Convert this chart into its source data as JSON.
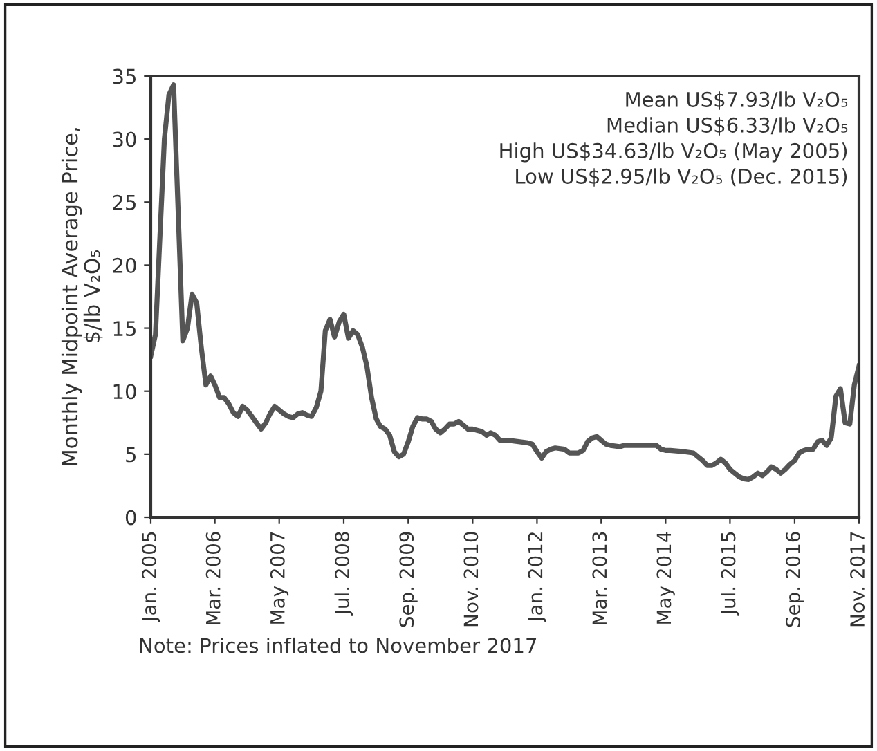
{
  "chart_data": {
    "type": "line",
    "ylabel": "Monthly Midpoint Average Price,\n$/lb V₂O₅",
    "annotations": [
      "Mean US$7.93/lb V₂O₅",
      "Median US$6.33/lb V₂O₅",
      "High US$34.63/lb V₂O₅ (May 2005)",
      "Low US$2.95/lb V₂O₅ (Dec. 2015)",
      "Note: Prices inflated to November 2017"
    ],
    "x": [
      "2005-01",
      "2005-02",
      "2005-04",
      "2005-05",
      "2005-06",
      "2005-08",
      "2005-09",
      "2005-10",
      "2005-11",
      "2005-12",
      "2006-01",
      "2006-02",
      "2006-03",
      "2006-04",
      "2006-05",
      "2006-06",
      "2006-07",
      "2006-08",
      "2006-09",
      "2006-10",
      "2006-11",
      "2006-12",
      "2007-01",
      "2007-02",
      "2007-03",
      "2007-04",
      "2007-05",
      "2007-06",
      "2007-07",
      "2007-08",
      "2007-09",
      "2007-10",
      "2007-11",
      "2007-12",
      "2008-01",
      "2008-02",
      "2008-03",
      "2008-04",
      "2008-05",
      "2008-06",
      "2008-07",
      "2008-08",
      "2008-09",
      "2008-10",
      "2008-11",
      "2008-12",
      "2009-01",
      "2009-02",
      "2009-03",
      "2009-04",
      "2009-05",
      "2009-06",
      "2009-07",
      "2009-08",
      "2009-09",
      "2009-10",
      "2009-11",
      "2009-12",
      "2010-01",
      "2010-02",
      "2010-03",
      "2010-04",
      "2010-05",
      "2010-06",
      "2010-07",
      "2010-08",
      "2010-09",
      "2010-10",
      "2010-11",
      "2010-12",
      "2011-01",
      "2011-02",
      "2011-03",
      "2011-04",
      "2011-05",
      "2011-07",
      "2011-09",
      "2011-11",
      "2011-12",
      "2012-01",
      "2012-02",
      "2012-03",
      "2012-04",
      "2012-05",
      "2012-07",
      "2012-08",
      "2012-10",
      "2012-11",
      "2012-12",
      "2013-01",
      "2013-02",
      "2013-03",
      "2013-04",
      "2013-05",
      "2013-07",
      "2013-08",
      "2013-11",
      "2014-03",
      "2014-04",
      "2014-05",
      "2014-06",
      "2014-09",
      "2014-11",
      "2014-12",
      "2015-01",
      "2015-02",
      "2015-03",
      "2015-04",
      "2015-05",
      "2015-06",
      "2015-07",
      "2015-08",
      "2015-09",
      "2015-10",
      "2015-11",
      "2015-12",
      "2016-01",
      "2016-02",
      "2016-03",
      "2016-04",
      "2016-05",
      "2016-06",
      "2016-07",
      "2016-08",
      "2016-09",
      "2016-10",
      "2016-11",
      "2016-12",
      "2017-01",
      "2017-02",
      "2017-03",
      "2017-04",
      "2017-05",
      "2017-06",
      "2017-07",
      "2017-08",
      "2017-09",
      "2017-10",
      "2017-11"
    ],
    "series": [
      {
        "color": "#555555",
        "values": [
          12.8,
          14.5,
          30,
          33.5,
          34.3,
          14,
          15,
          17.7,
          17,
          13.5,
          10.5,
          11.2,
          10.5,
          9.5,
          9.5,
          9,
          8.3,
          8,
          8.8,
          8.5,
          8,
          7.5,
          7,
          7.5,
          8.2,
          8.8,
          8.5,
          8.2,
          8,
          7.9,
          8.2,
          8.3,
          8.1,
          8,
          8.7,
          10,
          14.8,
          15.7,
          14.3,
          15.5,
          16.1,
          14.2,
          14.8,
          14.5,
          13.5,
          12,
          9.5,
          7.8,
          7.2,
          7,
          6.5,
          5.2,
          4.8,
          5,
          6,
          7.2,
          7.9,
          7.8,
          7.8,
          7.6,
          7,
          6.7,
          7,
          7.4,
          7.4,
          7.6,
          7.3,
          7,
          7,
          6.9,
          6.8,
          6.5,
          6.7,
          6.5,
          6.1,
          6.1,
          6,
          5.9,
          5.8,
          5.2,
          4.7,
          5.2,
          5.4,
          5.5,
          5.4,
          5.1,
          5.1,
          5.3,
          6,
          6.3,
          6.4,
          6.1,
          5.8,
          5.7,
          5.6,
          5.7,
          5.7,
          5.7,
          5.4,
          5.3,
          5.3,
          5.2,
          5.1,
          4.8,
          4.5,
          4.1,
          4.1,
          4.3,
          4.6,
          4.3,
          3.8,
          3.5,
          3.2,
          3.05,
          3.0,
          3.2,
          3.5,
          3.3,
          3.6,
          4,
          3.8,
          3.5,
          3.8,
          4.2,
          4.5,
          5.1,
          5.3,
          5.4,
          5.4,
          6,
          6.1,
          5.7,
          6.3,
          9.6,
          10.2,
          7.5,
          7.4,
          10.5,
          12
        ]
      }
    ],
    "xlim": [
      "2005-01",
      "2017-11"
    ],
    "xticks": [
      {
        "value": "2005-01",
        "label": "Jan. 2005"
      },
      {
        "value": "2006-03",
        "label": "Mar. 2006"
      },
      {
        "value": "2007-05",
        "label": "May 2007"
      },
      {
        "value": "2008-07",
        "label": "Jul. 2008"
      },
      {
        "value": "2009-09",
        "label": "Sep. 2009"
      },
      {
        "value": "2010-11",
        "label": "Nov. 2010"
      },
      {
        "value": "2012-01",
        "label": "Jan. 2012"
      },
      {
        "value": "2013-03",
        "label": "Mar. 2013"
      },
      {
        "value": "2014-05",
        "label": "May 2014"
      },
      {
        "value": "2015-07",
        "label": "Jul. 2015"
      },
      {
        "value": "2016-09",
        "label": "Sep. 2016"
      },
      {
        "value": "2017-11",
        "label": "Nov. 2017"
      }
    ],
    "ylim": [
      0,
      35
    ],
    "yticks": [
      0,
      5,
      10,
      15,
      20,
      25,
      30,
      35
    ],
    "grid": false,
    "legend": false,
    "marker": "none",
    "line_style": "solid"
  }
}
